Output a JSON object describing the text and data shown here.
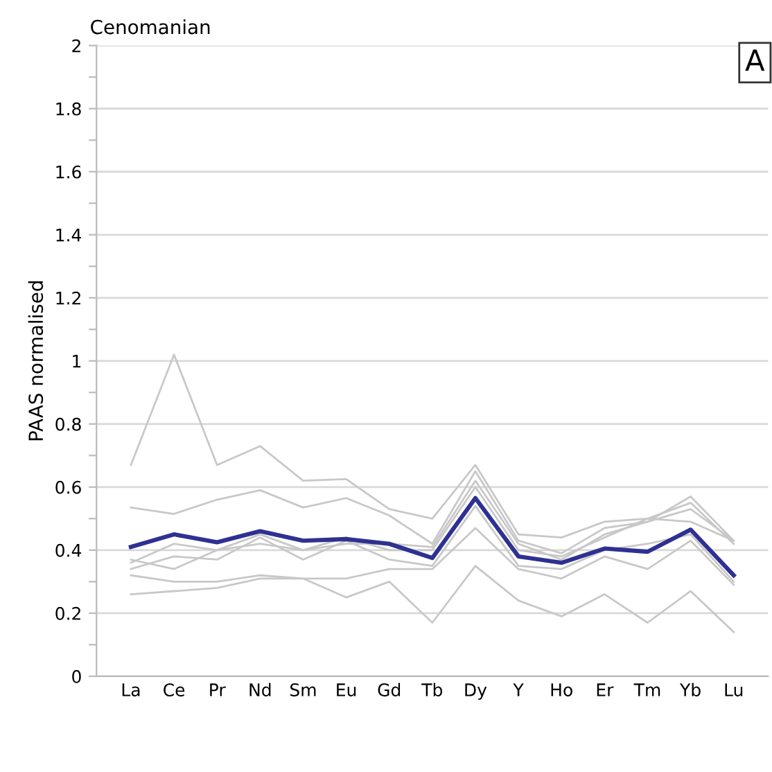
{
  "chart_data": {
    "type": "line",
    "title": "Cenomanian",
    "ylabel": "PAAS normalised",
    "annotations": [
      "A"
    ],
    "categories": [
      "La",
      "Ce",
      "Pr",
      "Nd",
      "Sm",
      "Eu",
      "Gd",
      "Tb",
      "Dy",
      "Y",
      "Ho",
      "Er",
      "Tm",
      "Yb",
      "Lu"
    ],
    "ylim": [
      0,
      2
    ],
    "yticks": [
      0,
      {
        "value": 0.1,
        "label": null
      },
      0.2,
      {
        "value": 0.3,
        "label": null
      },
      0.4,
      {
        "value": 0.5,
        "label": null
      },
      0.6,
      {
        "value": 0.7,
        "label": null
      },
      0.8,
      {
        "value": 0.9,
        "label": null
      },
      1,
      {
        "value": 1.1,
        "label": null
      },
      1.2,
      {
        "value": 1.3,
        "label": null
      },
      1.4,
      {
        "value": 1.5,
        "label": null
      },
      1.6,
      {
        "value": 1.7,
        "label": null
      },
      1.8,
      {
        "value": 1.9,
        "label": null
      },
      2
    ],
    "grid": "y",
    "marker": "none",
    "line_style": "solid",
    "series": [
      {
        "color": "#c8c8c8",
        "values": [
          0.67,
          1.02,
          0.67,
          0.73,
          0.62,
          0.625,
          0.53,
          0.5,
          0.67,
          0.45,
          0.44,
          0.49,
          0.5,
          0.49,
          0.43
        ]
      },
      {
        "color": "#c8c8c8",
        "values": [
          0.535,
          0.515,
          0.56,
          0.59,
          0.535,
          0.565,
          0.51,
          0.42,
          0.65,
          0.43,
          0.39,
          0.47,
          0.49,
          0.57,
          0.43
        ]
      },
      {
        "color": "#c8c8c8",
        "values": [
          0.26,
          0.27,
          0.28,
          0.31,
          0.31,
          0.25,
          0.3,
          0.17,
          0.35,
          0.24,
          0.19,
          0.26,
          0.17,
          0.27,
          0.14
        ]
      },
      {
        "color": "#c8c8c8",
        "values": [
          0.32,
          0.3,
          0.3,
          0.32,
          0.31,
          0.31,
          0.34,
          0.34,
          0.47,
          0.34,
          0.31,
          0.38,
          0.34,
          0.43,
          0.29
        ]
      },
      {
        "color": "#c8c8c8",
        "values": [
          0.34,
          0.38,
          0.37,
          0.44,
          0.37,
          0.43,
          0.37,
          0.35,
          0.54,
          0.35,
          0.34,
          0.4,
          0.42,
          0.45,
          0.3
        ]
      },
      {
        "color": "#c8c8c8",
        "values": [
          0.36,
          0.42,
          0.4,
          0.42,
          0.4,
          0.42,
          0.42,
          0.41,
          0.62,
          0.42,
          0.37,
          0.45,
          0.49,
          0.53,
          0.43
        ]
      },
      {
        "color": "#c8c8c8",
        "values": [
          0.37,
          0.34,
          0.4,
          0.45,
          0.4,
          0.44,
          0.4,
          0.4,
          0.6,
          0.4,
          0.38,
          0.44,
          0.5,
          0.55,
          0.42
        ]
      },
      {
        "color": "#2e3192",
        "values": [
          0.41,
          0.45,
          0.425,
          0.46,
          0.43,
          0.435,
          0.42,
          0.375,
          0.565,
          0.38,
          0.36,
          0.405,
          0.395,
          0.465,
          0.32
        ]
      }
    ]
  }
}
